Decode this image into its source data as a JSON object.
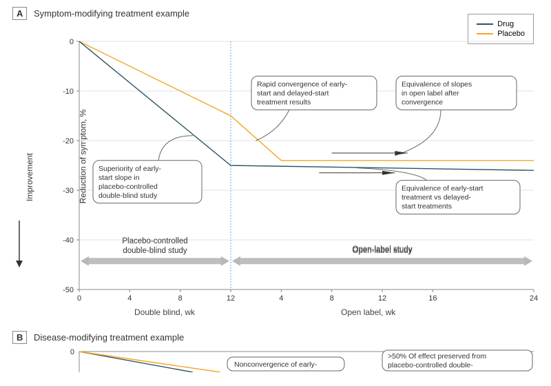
{
  "panelA": {
    "label_letter": "A",
    "label_text": "Symptom-modifying treatment example",
    "y_axis_label": "Reduction of symptom, %",
    "y_sublabel": "Improvement",
    "y_ticks": [
      0,
      -10,
      -20,
      -30,
      -40,
      -50
    ],
    "ylim": [
      -50,
      0
    ],
    "phase1": {
      "x_ticks": [
        0,
        4,
        8,
        12
      ],
      "x_label": "Double blind, wk",
      "xlim": [
        0,
        12
      ]
    },
    "phase2": {
      "x_ticks": [
        4,
        8,
        12,
        16,
        24
      ],
      "x_label": "Open label, wk",
      "xlim": [
        0,
        24
      ]
    },
    "series": {
      "drug": {
        "label": "Drug",
        "color": "#2d5560",
        "points_phase1": [
          [
            0,
            0
          ],
          [
            12,
            -25
          ]
        ],
        "points_phase2": [
          [
            0,
            -25
          ],
          [
            24,
            -26
          ]
        ]
      },
      "placebo": {
        "label": "Placebo",
        "color": "#f5a623",
        "points_phase1": [
          [
            0,
            0
          ],
          [
            12,
            -15
          ]
        ],
        "points_phase2": [
          [
            0,
            -15
          ],
          [
            4,
            -24
          ],
          [
            24,
            -24
          ]
        ]
      }
    },
    "callouts": {
      "c1": "Superiority of early-start slope in placebo-controlled double-blind study",
      "c2": "Rapid convergence of early-start and delayed-start treatment results",
      "c3": "Equivalence of slopes in open label after convergence",
      "c4": "Equivalence of early-start treatment vs delayed-start treatments",
      "band1": "Placebo-controlled double-blind study",
      "band2": "Open-label study"
    }
  },
  "panelB": {
    "label_letter": "B",
    "label_text": "Disease-modifying treatment example",
    "callouts": {
      "c1": "Nonconvergence of early-",
      "c2": ">50% Of effect preserved from placebo-controlled double-"
    }
  },
  "legend": {
    "title": "",
    "items": [
      "Drug",
      "Placebo"
    ]
  },
  "colors": {
    "axis": "#888888",
    "grid": "#e0e0e0",
    "divider": "#6aa5e8",
    "callout_border": "#666666",
    "band_arrow": "#b8b8b8",
    "text": "#333333",
    "drug": "#2d5560",
    "placebo": "#f5a623",
    "bg": "#ffffff"
  },
  "style": {
    "line_width": 1.4,
    "font_size_label": 12,
    "font_size_tick": 11,
    "font_size_callout": 10.5
  }
}
